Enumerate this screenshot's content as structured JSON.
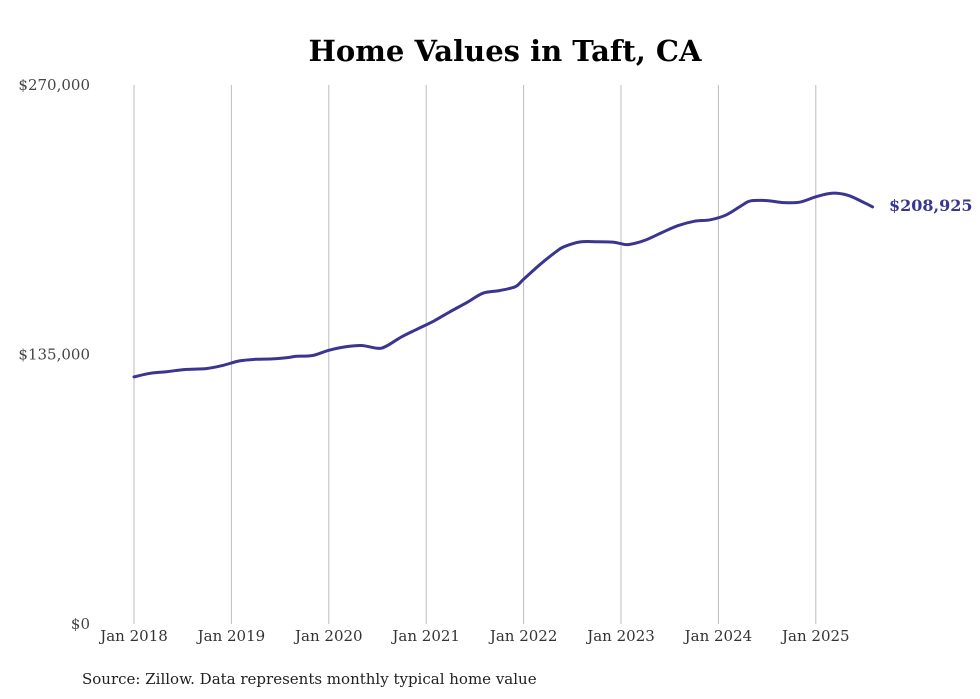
{
  "chart_data": {
    "type": "line",
    "title": "Home Values in Taft, CA",
    "xlabel": "",
    "ylabel": "",
    "source": "Source: Zillow. Data represents monthly typical home value",
    "ylim": [
      0,
      270000
    ],
    "y_ticks": [
      0,
      135000,
      270000
    ],
    "y_tick_labels": [
      "$0",
      "$135,000",
      "$270,000"
    ],
    "x_ticks": [
      "2018-01",
      "2019-01",
      "2020-01",
      "2021-01",
      "2022-01",
      "2023-01",
      "2024-01",
      "2025-01"
    ],
    "x_tick_labels": [
      "Jan 2018",
      "Jan 2019",
      "Jan 2020",
      "Jan 2021",
      "Jan 2022",
      "Jan 2023",
      "Jan 2024",
      "Jan 2025"
    ],
    "xlim": [
      "2018-01",
      "2025-08"
    ],
    "grid": "vertical",
    "line_color": "#3a3591",
    "end_label": "$208,925",
    "series": [
      {
        "x": [
          "2018-01",
          "2018-03",
          "2018-05",
          "2018-07",
          "2018-08",
          "2018-10",
          "2018-12",
          "2019-02",
          "2019-04",
          "2019-06",
          "2019-08",
          "2019-09",
          "2019-11",
          "2020-01",
          "2020-03",
          "2020-05",
          "2020-07",
          "2020-08",
          "2020-10",
          "2020-12",
          "2021-02",
          "2021-04",
          "2021-06",
          "2021-08",
          "2021-10",
          "2021-12",
          "2022-01",
          "2022-03",
          "2022-05",
          "2022-06",
          "2022-08",
          "2022-10",
          "2022-12",
          "2023-01",
          "2023-02",
          "2023-04",
          "2023-06",
          "2023-08",
          "2023-10",
          "2023-12",
          "2024-02",
          "2024-04",
          "2024-05",
          "2024-07",
          "2024-09",
          "2024-11",
          "2025-01",
          "2025-03",
          "2025-05",
          "2025-07",
          "2025-08"
        ],
        "values": [
          123800,
          125600,
          126400,
          127400,
          127600,
          128000,
          129600,
          131800,
          132600,
          132800,
          133500,
          134100,
          134500,
          137100,
          138800,
          139500,
          138100,
          139000,
          143900,
          147900,
          151900,
          156600,
          161000,
          165700,
          167000,
          169000,
          172700,
          180000,
          186500,
          189000,
          191400,
          191500,
          191300,
          190500,
          190100,
          192300,
          196000,
          199500,
          201700,
          202500,
          205000,
          210000,
          212000,
          212100,
          211100,
          211300,
          214000,
          215800,
          214700,
          211000,
          208925
        ]
      }
    ]
  }
}
